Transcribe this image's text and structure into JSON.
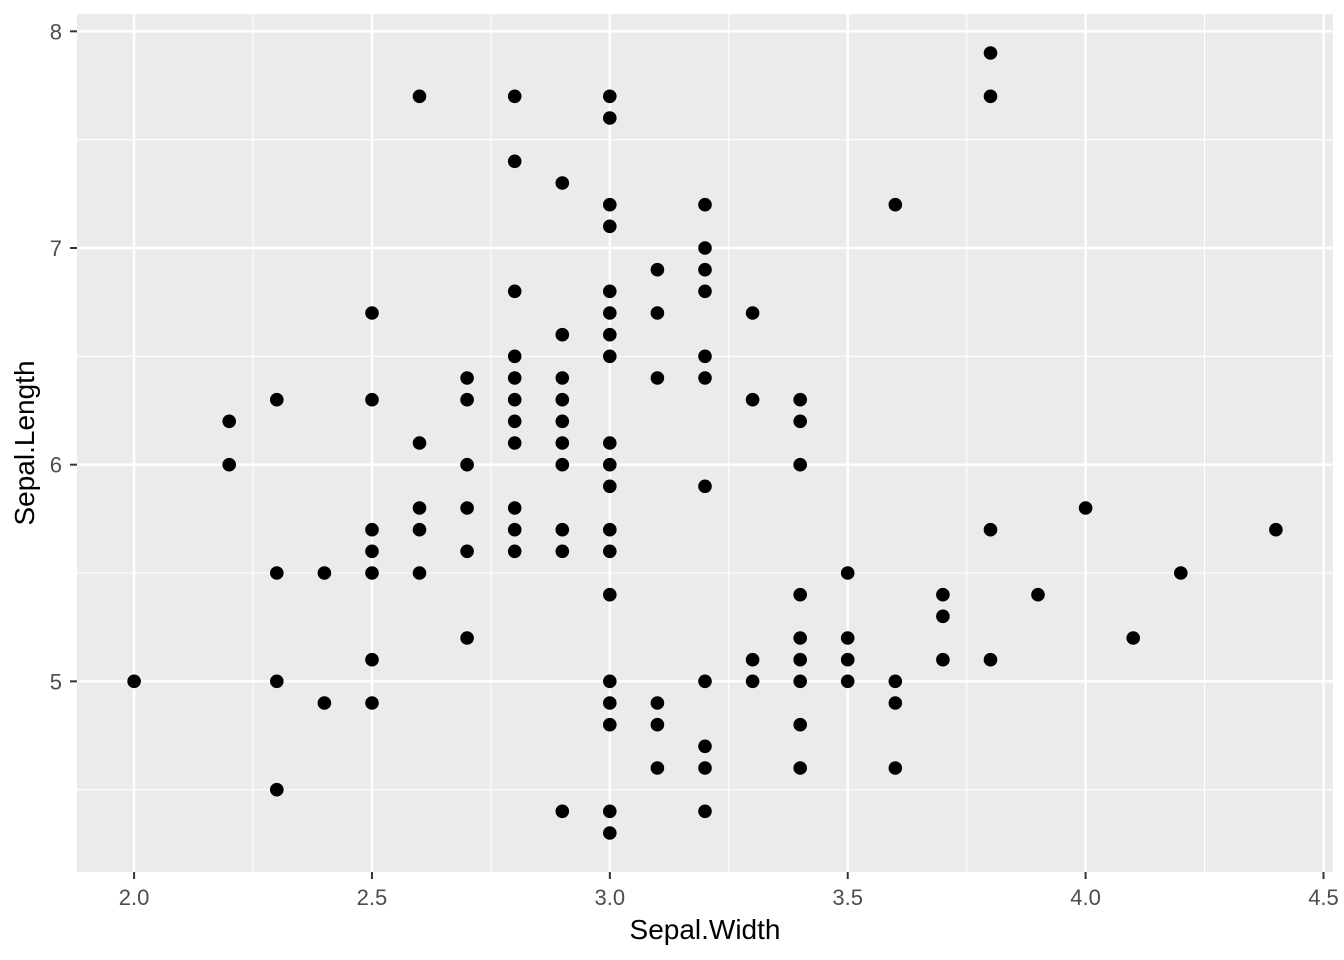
{
  "chart_data": {
    "type": "scatter",
    "title": "",
    "xlabel": "Sepal.Width",
    "ylabel": "Sepal.Length",
    "x_ticks": [
      2.0,
      2.5,
      3.0,
      3.5,
      4.0,
      4.5
    ],
    "x_tick_labels": [
      "2.0",
      "2.5",
      "3.0",
      "3.5",
      "4.0",
      "4.5"
    ],
    "y_ticks": [
      5,
      6,
      7,
      8
    ],
    "y_tick_labels": [
      "5",
      "6",
      "7",
      "8"
    ],
    "x_minor_ticks": [
      2.25,
      2.75,
      3.25,
      3.75,
      4.25
    ],
    "y_minor_ticks": [
      4.5,
      5.5,
      6.5,
      7.5
    ],
    "xlim": [
      1.88,
      4.52
    ],
    "ylim": [
      4.12,
      8.08
    ],
    "grid": true,
    "legend": "none",
    "style": {
      "panel_background": "#EBEBEB",
      "grid_major_color": "#FFFFFF",
      "grid_minor_color": "#FFFFFF",
      "point_color": "#000000",
      "tick_mark_color": "#333333",
      "tick_label_color": "#4D4D4D",
      "axis_title_color": "#000000"
    },
    "points": [
      [
        2.0,
        5.0
      ],
      [
        2.2,
        6.0
      ],
      [
        2.2,
        6.2
      ],
      [
        2.3,
        4.5
      ],
      [
        2.3,
        5.0
      ],
      [
        2.3,
        5.5
      ],
      [
        2.3,
        6.3
      ],
      [
        2.4,
        4.9
      ],
      [
        2.4,
        5.5
      ],
      [
        2.5,
        4.9
      ],
      [
        2.5,
        5.1
      ],
      [
        2.5,
        5.5
      ],
      [
        2.5,
        5.6
      ],
      [
        2.5,
        5.7
      ],
      [
        2.5,
        6.3
      ],
      [
        2.5,
        6.7
      ],
      [
        2.6,
        5.5
      ],
      [
        2.6,
        5.7
      ],
      [
        2.6,
        5.8
      ],
      [
        2.6,
        6.1
      ],
      [
        2.6,
        7.7
      ],
      [
        2.7,
        5.2
      ],
      [
        2.7,
        5.6
      ],
      [
        2.7,
        5.8
      ],
      [
        2.7,
        6.0
      ],
      [
        2.7,
        6.3
      ],
      [
        2.7,
        6.4
      ],
      [
        2.8,
        5.6
      ],
      [
        2.8,
        5.7
      ],
      [
        2.8,
        5.8
      ],
      [
        2.8,
        6.1
      ],
      [
        2.8,
        6.2
      ],
      [
        2.8,
        6.3
      ],
      [
        2.8,
        6.4
      ],
      [
        2.8,
        6.5
      ],
      [
        2.8,
        6.8
      ],
      [
        2.8,
        7.4
      ],
      [
        2.8,
        7.7
      ],
      [
        2.9,
        4.4
      ],
      [
        2.9,
        5.6
      ],
      [
        2.9,
        5.7
      ],
      [
        2.9,
        6.0
      ],
      [
        2.9,
        6.1
      ],
      [
        2.9,
        6.2
      ],
      [
        2.9,
        6.3
      ],
      [
        2.9,
        6.4
      ],
      [
        2.9,
        6.6
      ],
      [
        2.9,
        7.3
      ],
      [
        3.0,
        4.3
      ],
      [
        3.0,
        4.4
      ],
      [
        3.0,
        4.8
      ],
      [
        3.0,
        4.9
      ],
      [
        3.0,
        5.0
      ],
      [
        3.0,
        5.4
      ],
      [
        3.0,
        5.6
      ],
      [
        3.0,
        5.7
      ],
      [
        3.0,
        5.9
      ],
      [
        3.0,
        6.0
      ],
      [
        3.0,
        6.1
      ],
      [
        3.0,
        6.5
      ],
      [
        3.0,
        6.6
      ],
      [
        3.0,
        6.7
      ],
      [
        3.0,
        6.8
      ],
      [
        3.0,
        7.1
      ],
      [
        3.0,
        7.2
      ],
      [
        3.0,
        7.6
      ],
      [
        3.0,
        7.7
      ],
      [
        3.1,
        4.6
      ],
      [
        3.1,
        4.8
      ],
      [
        3.1,
        4.9
      ],
      [
        3.1,
        6.4
      ],
      [
        3.1,
        6.7
      ],
      [
        3.1,
        6.9
      ],
      [
        3.2,
        4.4
      ],
      [
        3.2,
        4.6
      ],
      [
        3.2,
        4.7
      ],
      [
        3.2,
        5.0
      ],
      [
        3.2,
        5.9
      ],
      [
        3.2,
        6.4
      ],
      [
        3.2,
        6.5
      ],
      [
        3.2,
        6.8
      ],
      [
        3.2,
        6.9
      ],
      [
        3.2,
        7.0
      ],
      [
        3.2,
        7.2
      ],
      [
        3.3,
        5.0
      ],
      [
        3.3,
        5.1
      ],
      [
        3.3,
        6.3
      ],
      [
        3.3,
        6.7
      ],
      [
        3.4,
        4.6
      ],
      [
        3.4,
        4.8
      ],
      [
        3.4,
        5.0
      ],
      [
        3.4,
        5.1
      ],
      [
        3.4,
        5.2
      ],
      [
        3.4,
        5.4
      ],
      [
        3.4,
        6.0
      ],
      [
        3.4,
        6.2
      ],
      [
        3.4,
        6.3
      ],
      [
        3.5,
        5.0
      ],
      [
        3.5,
        5.1
      ],
      [
        3.5,
        5.2
      ],
      [
        3.5,
        5.5
      ],
      [
        3.6,
        4.6
      ],
      [
        3.6,
        4.9
      ],
      [
        3.6,
        5.0
      ],
      [
        3.6,
        7.2
      ],
      [
        3.7,
        5.1
      ],
      [
        3.7,
        5.3
      ],
      [
        3.7,
        5.4
      ],
      [
        3.8,
        5.1
      ],
      [
        3.8,
        5.7
      ],
      [
        3.8,
        7.7
      ],
      [
        3.8,
        7.9
      ],
      [
        3.9,
        5.4
      ],
      [
        4.0,
        5.8
      ],
      [
        4.1,
        5.2
      ],
      [
        4.2,
        5.5
      ],
      [
        4.4,
        5.7
      ]
    ]
  }
}
